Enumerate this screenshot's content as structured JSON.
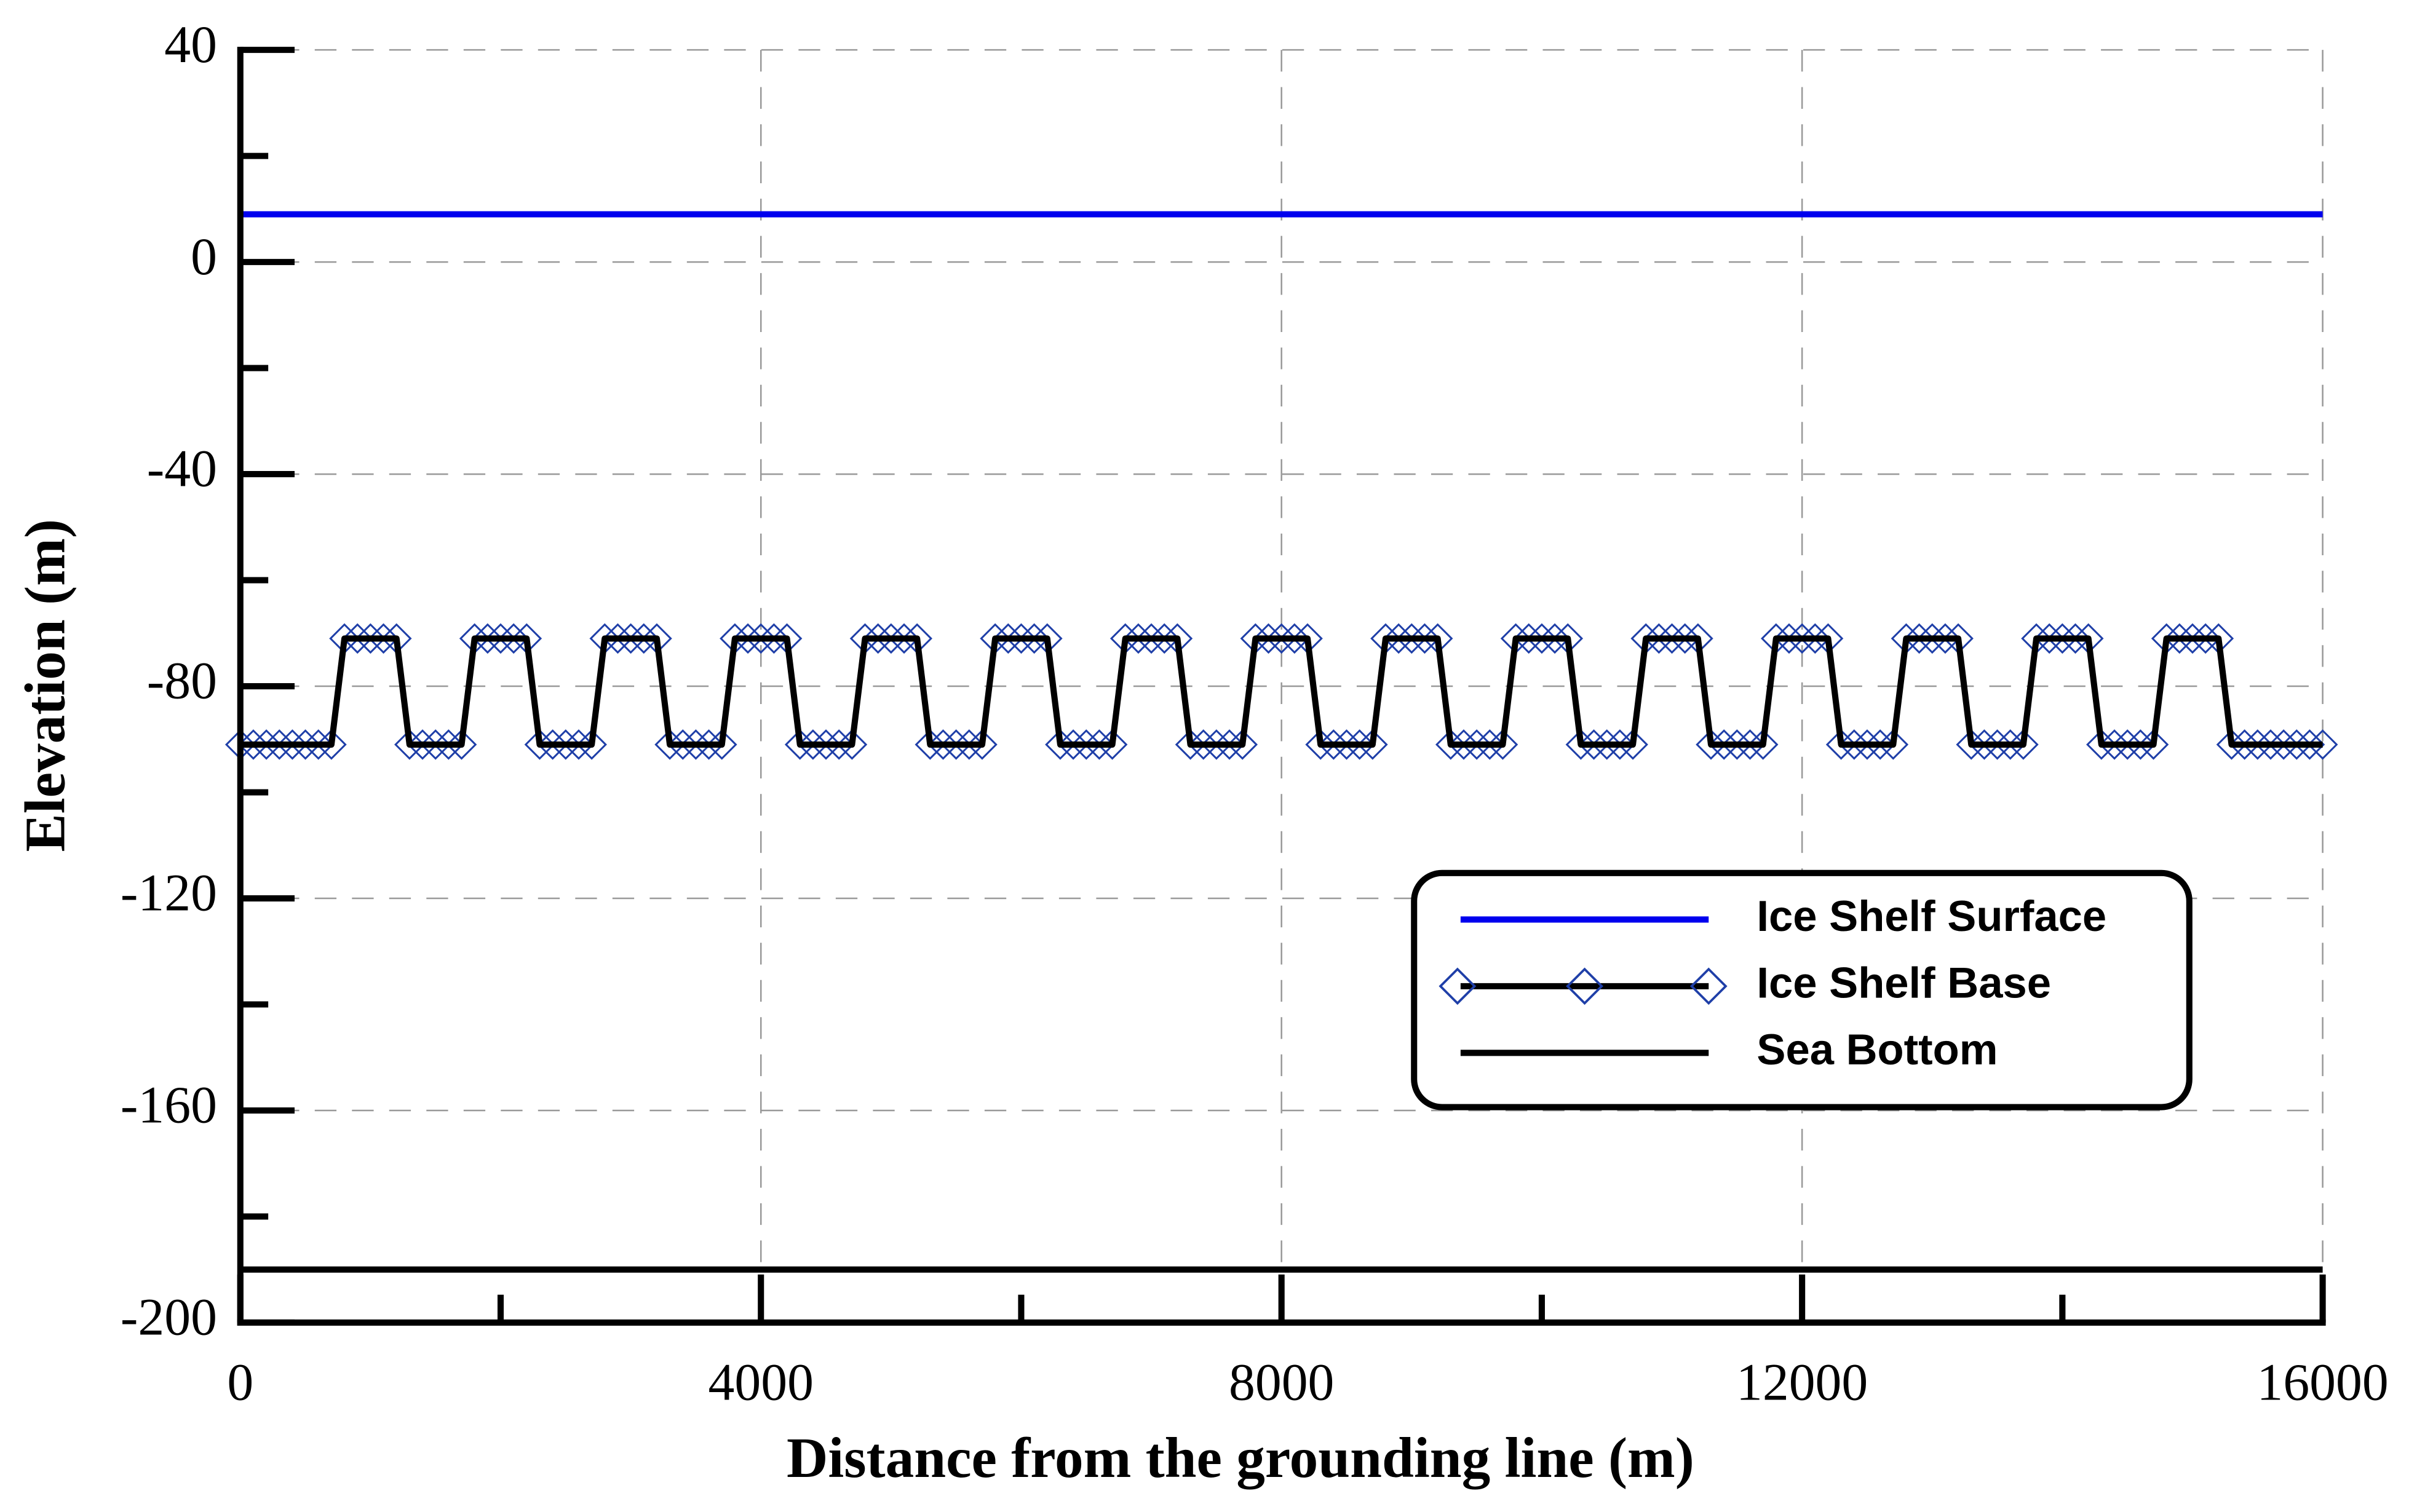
{
  "chart_data": {
    "type": "line",
    "x_label": "Distance from the grounding line (m)",
    "y_label": "Elevation (m)",
    "xlim": [
      0,
      16000
    ],
    "ylim": [
      -200,
      40
    ],
    "xticks": [
      0,
      4000,
      8000,
      12000,
      16000
    ],
    "xminor_ticks": [
      2000,
      6000,
      10000,
      14000
    ],
    "yticks": [
      40,
      0,
      -40,
      -80,
      -120,
      -160,
      -200
    ],
    "yminor_ticks": [
      20,
      -20,
      -60,
      -100,
      -140,
      -180
    ],
    "grid": true,
    "series": [
      {
        "name": "Ice Shelf Surface",
        "color": "#0000ee",
        "x": [
          0,
          16000
        ],
        "values": [
          9,
          9
        ]
      },
      {
        "name": "Ice Shelf Base",
        "color": "#000000",
        "marker": "diamond",
        "marker_color": "#1f3fa8",
        "x": [
          0,
          100,
          200,
          300,
          400,
          500,
          600,
          700,
          800,
          900,
          1000,
          1100,
          1200,
          1300,
          1400,
          1500,
          1600,
          1700,
          1800,
          1900,
          2000,
          2100,
          2200,
          2300,
          2400,
          2500,
          2600,
          2700,
          2800,
          2900,
          3000,
          3100,
          3200,
          3300,
          3400,
          3500,
          3600,
          3700,
          3800,
          3900,
          4000,
          4100,
          4200,
          4300,
          4400,
          4500,
          4600,
          4700,
          4800,
          4900,
          5000,
          5100,
          5200,
          5300,
          5400,
          5500,
          5600,
          5700,
          5800,
          5900,
          6000,
          6100,
          6200,
          6300,
          6400,
          6500,
          6600,
          6700,
          6800,
          6900,
          7000,
          7100,
          7200,
          7300,
          7400,
          7500,
          7600,
          7700,
          7800,
          7900,
          8000,
          8100,
          8200,
          8300,
          8400,
          8500,
          8600,
          8700,
          8800,
          8900,
          9000,
          9100,
          9200,
          9300,
          9400,
          9500,
          9600,
          9700,
          9800,
          9900,
          10000,
          10100,
          10200,
          10300,
          10400,
          10500,
          10600,
          10700,
          10800,
          10900,
          11000,
          11100,
          11200,
          11300,
          11400,
          11500,
          11600,
          11700,
          11800,
          11900,
          12000,
          12100,
          12200,
          12300,
          12400,
          12500,
          12600,
          12700,
          12800,
          12900,
          13000,
          13100,
          13200,
          13300,
          13400,
          13500,
          13600,
          13700,
          13800,
          13900,
          14000,
          14100,
          14200,
          14300,
          14400,
          14500,
          14600,
          14700,
          14800,
          14900,
          15000,
          15100,
          15200,
          15300,
          15400,
          15500,
          15600,
          15700,
          15800,
          15900,
          16000
        ],
        "values": [
          -91,
          -91,
          -91,
          -91,
          -91,
          -91,
          -91,
          -91,
          -71,
          -71,
          -71,
          -71,
          -71,
          -91,
          -91,
          -91,
          -91,
          -91,
          -71,
          -71,
          -71,
          -71,
          -71,
          -91,
          -91,
          -91,
          -91,
          -91,
          -71,
          -71,
          -71,
          -71,
          -71,
          -91,
          -91,
          -91,
          -91,
          -91,
          -71,
          -71,
          -71,
          -71,
          -71,
          -91,
          -91,
          -91,
          -91,
          -91,
          -71,
          -71,
          -71,
          -71,
          -71,
          -91,
          -91,
          -91,
          -91,
          -91,
          -71,
          -71,
          -71,
          -71,
          -71,
          -91,
          -91,
          -91,
          -91,
          -91,
          -71,
          -71,
          -71,
          -71,
          -71,
          -91,
          -91,
          -91,
          -91,
          -91,
          -71,
          -71,
          -71,
          -71,
          -71,
          -91,
          -91,
          -91,
          -91,
          -91,
          -71,
          -71,
          -71,
          -71,
          -71,
          -91,
          -91,
          -91,
          -91,
          -91,
          -71,
          -71,
          -71,
          -71,
          -71,
          -91,
          -91,
          -91,
          -91,
          -91,
          -71,
          -71,
          -71,
          -71,
          -71,
          -91,
          -91,
          -91,
          -91,
          -91,
          -71,
          -71,
          -71,
          -71,
          -71,
          -91,
          -91,
          -91,
          -91,
          -91,
          -71,
          -71,
          -71,
          -71,
          -71,
          -91,
          -91,
          -91,
          -91,
          -91,
          -71,
          -71,
          -71,
          -71,
          -71,
          -91,
          -91,
          -91,
          -91,
          -91,
          -71,
          -71,
          -71,
          -71,
          -71,
          -91,
          -91,
          -91,
          -91,
          -91,
          -91,
          -91,
          -91
        ]
      },
      {
        "name": "Sea Bottom",
        "color": "#000000",
        "x": [
          0,
          16000
        ],
        "values": [
          -190,
          -190
        ]
      }
    ]
  }
}
